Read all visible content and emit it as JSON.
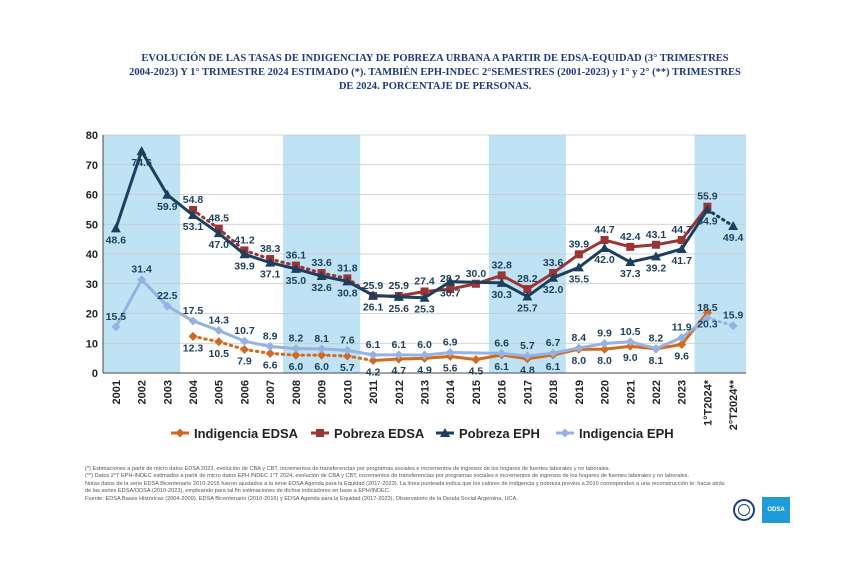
{
  "title_lines": [
    "EVOLUCIÓN DE LAS TASAS DE INDIGENCIAY DE POBREZA URBANA A PARTIR DE EDSA-EQUIDAD (3° TRIMESTRES",
    "2004-2023) Y 1° TRIMESTRE 2024 ESTIMADO (*). TAMBIÉN EPH-INDEC 2°SEMESTRES (2001-2023) y 1° y 2° (**) TRIMESTRES",
    "DE 2024. PORCENTAJE DE PERSONAS."
  ],
  "notes": [
    "(*) Estimaciones a partir de micro datos EDSA 2023, evolución de CBA y CBT, incrementos de transferencias por programas sociales e incrementos de ingresos de los hogares de fuentes laborales y no laborales.",
    "(**) Datos 2°T EPH-INDEC estimados a partir de micro datos EPH INDEC 1°T 2024, evolución de CBA y CBT, incrementos de transferencias por programas sociales e incrementos de ingresos de los hogares de fuentes laborales y no laborales.",
    "Notas datos de la serie EDSA Bicentenario 2010-2016 fueron ajustados a la serie EDSA Agenda para la Equidad (2017-2023). La línea punteada indica que los valores de indigencia y pobreza previos a 2010 corresponden a una reconstrucción te: hacia atrás de las series EDSA/ODSA (2010-2023), empleando para tal fin estimaciones de dichos indicadores en base a EPH/INDEC.",
    "Fuente: EDSA Bases Históricas (2004-2009), EDSA Bicentenario (2010-2016) y EDSA Agenda para la Equidad (2017-2023), Observatorio de la Deuda Social Argentina, UCA."
  ],
  "logo_text": "ODSA",
  "colors": {
    "pobreza_edsa": "#9b3434",
    "indigencia_edsa": "#d2691e",
    "pobreza_eph": "#1c3f5e",
    "indigencia_eph": "#95b3e0",
    "band": "#bfe3f4",
    "grid": "#c8c8c8",
    "axis": "#444444",
    "label": "#1c3f5e"
  },
  "chart_data": {
    "type": "line",
    "ylim": [
      0,
      80
    ],
    "yticks": [
      0,
      10,
      20,
      30,
      40,
      50,
      60,
      70,
      80
    ],
    "categories": [
      "2001",
      "2002",
      "2003",
      "2004",
      "2005",
      "2006",
      "2007",
      "2008",
      "2009",
      "2010",
      "2011",
      "2012",
      "2013",
      "2014",
      "2015",
      "2016",
      "2017",
      "2018",
      "2019",
      "2020",
      "2021",
      "2022",
      "2023",
      "1°T2024*",
      "2°T2024**"
    ],
    "shaded_bands": [
      [
        0,
        2
      ],
      [
        7,
        9
      ],
      [
        15,
        17
      ],
      [
        23,
        24
      ]
    ],
    "series": [
      {
        "name": "Pobreza EDSA",
        "key": "pobreza_edsa",
        "marker": "square",
        "values": [
          null,
          null,
          null,
          54.8,
          48.5,
          41.2,
          38.3,
          36.1,
          33.6,
          31.8,
          25.9,
          25.9,
          27.4,
          28.2,
          30.0,
          32.8,
          28.2,
          33.6,
          39.9,
          44.7,
          42.4,
          43.1,
          44.7,
          55.9,
          null
        ],
        "dotted_until": 10
      },
      {
        "name": "Pobreza EPH",
        "key": "pobreza_eph",
        "marker": "triangle",
        "values": [
          48.6,
          74.6,
          59.9,
          53.1,
          47.0,
          39.9,
          37.1,
          35.0,
          32.6,
          30.8,
          26.1,
          25.6,
          25.3,
          30.7,
          null,
          30.3,
          25.7,
          32.0,
          35.5,
          42.0,
          37.3,
          39.2,
          41.7,
          54.9,
          49.4
        ],
        "dotted_from": 23
      },
      {
        "name": "Indigencia EDSA",
        "key": "indigencia_edsa",
        "marker": "diamond",
        "values": [
          null,
          null,
          null,
          12.3,
          10.5,
          7.9,
          6.6,
          6.0,
          6.0,
          5.7,
          4.2,
          4.7,
          4.9,
          5.6,
          4.5,
          6.1,
          4.8,
          6.1,
          8.0,
          8.0,
          9.0,
          8.1,
          9.6,
          20.3,
          null
        ],
        "dotted_until": 10
      },
      {
        "name": "Indigencia EPH",
        "key": "indigencia_eph",
        "marker": "diamond",
        "values": [
          15.5,
          31.4,
          22.5,
          17.5,
          14.3,
          10.7,
          8.9,
          8.2,
          8.1,
          7.6,
          6.1,
          6.1,
          6.0,
          6.9,
          null,
          6.6,
          5.7,
          6.7,
          8.4,
          9.9,
          10.5,
          8.2,
          11.9,
          18.5,
          15.9
        ],
        "dotted_from": 23
      }
    ],
    "point_labels": [
      {
        "series": "pobreza_eph",
        "i": 0,
        "text": "48.6"
      },
      {
        "series": "pobreza_eph",
        "i": 1,
        "text": "74.6"
      },
      {
        "series": "pobreza_eph",
        "i": 2,
        "text": "59.9"
      },
      {
        "series": "pobreza_edsa",
        "i": 3,
        "text": "54.8"
      },
      {
        "series": "pobreza_eph",
        "i": 3,
        "text": "53.1"
      },
      {
        "series": "pobreza_edsa",
        "i": 4,
        "text": "48.5"
      },
      {
        "series": "pobreza_eph",
        "i": 4,
        "text": "47.0"
      },
      {
        "series": "pobreza_edsa",
        "i": 5,
        "text": "41.2"
      },
      {
        "series": "pobreza_eph",
        "i": 5,
        "text": "39.9"
      },
      {
        "series": "pobreza_edsa",
        "i": 6,
        "text": "38.3"
      },
      {
        "series": "pobreza_eph",
        "i": 6,
        "text": "37.1"
      },
      {
        "series": "pobreza_edsa",
        "i": 7,
        "text": "36.1"
      },
      {
        "series": "pobreza_eph",
        "i": 7,
        "text": "35.0"
      },
      {
        "series": "pobreza_edsa",
        "i": 8,
        "text": "33.6"
      },
      {
        "series": "pobreza_eph",
        "i": 8,
        "text": "32.6"
      },
      {
        "series": "pobreza_edsa",
        "i": 9,
        "text": "31.8"
      },
      {
        "series": "pobreza_eph",
        "i": 9,
        "text": "30.8"
      },
      {
        "series": "pobreza_edsa",
        "i": 10,
        "text": "25.9"
      },
      {
        "series": "pobreza_eph",
        "i": 10,
        "text": "26.1"
      },
      {
        "series": "pobreza_edsa",
        "i": 11,
        "text": "25.9"
      },
      {
        "series": "pobreza_eph",
        "i": 11,
        "text": "25.6"
      },
      {
        "series": "pobreza_edsa",
        "i": 12,
        "text": "27.4"
      },
      {
        "series": "pobreza_eph",
        "i": 12,
        "text": "25.3"
      },
      {
        "series": "pobreza_edsa",
        "i": 13,
        "text": "28.2"
      },
      {
        "series": "pobreza_eph",
        "i": 13,
        "text": "30.7"
      },
      {
        "series": "pobreza_edsa",
        "i": 14,
        "text": "30.0"
      },
      {
        "series": "pobreza_edsa",
        "i": 15,
        "text": "32.8"
      },
      {
        "series": "pobreza_eph",
        "i": 15,
        "text": "30.3"
      },
      {
        "series": "pobreza_edsa",
        "i": 16,
        "text": "28.2"
      },
      {
        "series": "pobreza_eph",
        "i": 16,
        "text": "25.7"
      },
      {
        "series": "pobreza_edsa",
        "i": 17,
        "text": "33.6"
      },
      {
        "series": "pobreza_eph",
        "i": 17,
        "text": "32.0"
      },
      {
        "series": "pobreza_edsa",
        "i": 18,
        "text": "39.9"
      },
      {
        "series": "pobreza_eph",
        "i": 18,
        "text": "35.5"
      },
      {
        "series": "pobreza_edsa",
        "i": 19,
        "text": "44.7"
      },
      {
        "series": "pobreza_eph",
        "i": 19,
        "text": "42.0"
      },
      {
        "series": "pobreza_edsa",
        "i": 20,
        "text": "42.4"
      },
      {
        "series": "pobreza_eph",
        "i": 20,
        "text": "37.3"
      },
      {
        "series": "pobreza_edsa",
        "i": 21,
        "text": "43.1"
      },
      {
        "series": "pobreza_eph",
        "i": 21,
        "text": "39.2"
      },
      {
        "series": "pobreza_edsa",
        "i": 22,
        "text": "44.7"
      },
      {
        "series": "pobreza_eph",
        "i": 22,
        "text": "41.7"
      },
      {
        "series": "pobreza_edsa",
        "i": 23,
        "text": "55.9"
      },
      {
        "series": "pobreza_eph",
        "i": 23,
        "text": "54.9"
      },
      {
        "series": "pobreza_eph",
        "i": 24,
        "text": "49.4"
      },
      {
        "series": "indigencia_eph",
        "i": 0,
        "text": "15.5"
      },
      {
        "series": "indigencia_eph",
        "i": 1,
        "text": "31.4"
      },
      {
        "series": "indigencia_eph",
        "i": 2,
        "text": "22.5"
      },
      {
        "series": "indigencia_eph",
        "i": 3,
        "text": "17.5"
      },
      {
        "series": "indigencia_edsa",
        "i": 3,
        "text": "12.3"
      },
      {
        "series": "indigencia_eph",
        "i": 4,
        "text": "14.3"
      },
      {
        "series": "indigencia_edsa",
        "i": 4,
        "text": "10.5"
      },
      {
        "series": "indigencia_eph",
        "i": 5,
        "text": "10.7"
      },
      {
        "series": "indigencia_edsa",
        "i": 5,
        "text": "7.9"
      },
      {
        "series": "indigencia_eph",
        "i": 6,
        "text": "8.9"
      },
      {
        "series": "indigencia_edsa",
        "i": 6,
        "text": "6.6"
      },
      {
        "series": "indigencia_eph",
        "i": 7,
        "text": "8.2"
      },
      {
        "series": "indigencia_edsa",
        "i": 7,
        "text": "6.0"
      },
      {
        "series": "indigencia_eph",
        "i": 8,
        "text": "8.1"
      },
      {
        "series": "indigencia_edsa",
        "i": 8,
        "text": "6.0"
      },
      {
        "series": "indigencia_eph",
        "i": 9,
        "text": "7.6"
      },
      {
        "series": "indigencia_edsa",
        "i": 9,
        "text": "5.7"
      },
      {
        "series": "indigencia_eph",
        "i": 10,
        "text": "6.1"
      },
      {
        "series": "indigencia_edsa",
        "i": 10,
        "text": "4.2"
      },
      {
        "series": "indigencia_eph",
        "i": 11,
        "text": "6.1"
      },
      {
        "series": "indigencia_edsa",
        "i": 11,
        "text": "4.7"
      },
      {
        "series": "indigencia_eph",
        "i": 12,
        "text": "6.0"
      },
      {
        "series": "indigencia_edsa",
        "i": 12,
        "text": "4.9"
      },
      {
        "series": "indigencia_eph",
        "i": 13,
        "text": "6.9"
      },
      {
        "series": "indigencia_edsa",
        "i": 13,
        "text": "5.6"
      },
      {
        "series": "indigencia_edsa",
        "i": 14,
        "text": "4.5"
      },
      {
        "series": "indigencia_eph",
        "i": 15,
        "text": "6.6"
      },
      {
        "series": "indigencia_edsa",
        "i": 15,
        "text": "6.1"
      },
      {
        "series": "indigencia_eph",
        "i": 16,
        "text": "5.7"
      },
      {
        "series": "indigencia_edsa",
        "i": 16,
        "text": "4.8"
      },
      {
        "series": "indigencia_eph",
        "i": 17,
        "text": "6.7"
      },
      {
        "series": "indigencia_edsa",
        "i": 17,
        "text": "6.1"
      },
      {
        "series": "indigencia_eph",
        "i": 18,
        "text": "8.4"
      },
      {
        "series": "indigencia_edsa",
        "i": 18,
        "text": "8.0"
      },
      {
        "series": "indigencia_eph",
        "i": 19,
        "text": "9.9"
      },
      {
        "series": "indigencia_edsa",
        "i": 19,
        "text": "8.0"
      },
      {
        "series": "indigencia_eph",
        "i": 20,
        "text": "10.5"
      },
      {
        "series": "indigencia_edsa",
        "i": 20,
        "text": "9.0"
      },
      {
        "series": "indigencia_eph",
        "i": 21,
        "text": "8.2"
      },
      {
        "series": "indigencia_edsa",
        "i": 21,
        "text": "8.1"
      },
      {
        "series": "indigencia_eph",
        "i": 22,
        "text": "11.9"
      },
      {
        "series": "indigencia_edsa",
        "i": 22,
        "text": "9.6"
      },
      {
        "series": "indigencia_edsa",
        "i": 23,
        "text": "20.3"
      },
      {
        "series": "indigencia_eph",
        "i": 23,
        "text": "18.5"
      },
      {
        "series": "indigencia_eph",
        "i": 24,
        "text": "15.9"
      }
    ],
    "legend": [
      {
        "label": "Indigencia EDSA",
        "key": "indigencia_edsa",
        "marker": "diamond"
      },
      {
        "label": "Pobreza EDSA",
        "key": "pobreza_edsa",
        "marker": "square"
      },
      {
        "label": "Pobreza EPH",
        "key": "pobreza_eph",
        "marker": "triangle"
      },
      {
        "label": "Indigencia EPH",
        "key": "indigencia_eph",
        "marker": "diamond"
      }
    ],
    "legend_position": "bottom",
    "grid": true
  }
}
